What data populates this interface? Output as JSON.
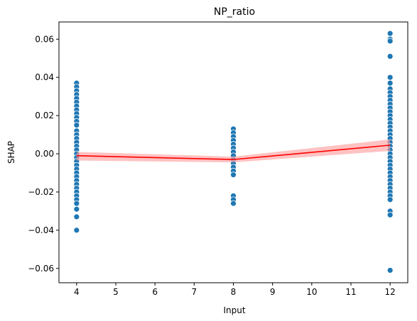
{
  "chart_data": {
    "type": "scatter",
    "title": "NP_ratio",
    "xlabel": "Input",
    "ylabel": "SHAP",
    "xlim": [
      3.55,
      12.45
    ],
    "ylim": [
      -0.0675,
      0.069
    ],
    "xticks": [
      4,
      5,
      6,
      7,
      8,
      9,
      10,
      11,
      12
    ],
    "yticks": [
      -0.06,
      -0.04,
      -0.02,
      0.0,
      0.02,
      0.04,
      0.06
    ],
    "ytick_labels": [
      "−0.06",
      "−0.04",
      "−0.02",
      "0.00",
      "0.02",
      "0.04",
      "0.06"
    ],
    "grid": false,
    "colors": {
      "points": "#1f77b4",
      "line": "#ff0000",
      "band": "#ff9999"
    },
    "scatter": [
      {
        "x": 4,
        "y": [
          0.037,
          0.035,
          0.033,
          0.031,
          0.029,
          0.027,
          0.025,
          0.023,
          0.021,
          0.019,
          0.017,
          0.015,
          0.012,
          0.01,
          0.008,
          0.006,
          0.004,
          0.002,
          0.0,
          -0.002,
          -0.004,
          -0.006,
          -0.008,
          -0.01,
          -0.012,
          -0.014,
          -0.016,
          -0.018,
          -0.02,
          -0.022,
          -0.024,
          -0.026,
          -0.029,
          -0.033,
          -0.04
        ]
      },
      {
        "x": 8,
        "y": [
          0.013,
          0.011,
          0.009,
          0.007,
          0.005,
          0.003,
          0.001,
          -0.001,
          -0.003,
          -0.005,
          -0.007,
          -0.009,
          -0.011,
          -0.022,
          -0.024,
          -0.026
        ]
      },
      {
        "x": 12,
        "y": [
          0.063,
          0.06,
          0.059,
          0.051,
          0.04,
          0.037,
          0.034,
          0.032,
          0.03,
          0.028,
          0.026,
          0.024,
          0.022,
          0.02,
          0.018,
          0.016,
          0.014,
          0.012,
          0.01,
          0.008,
          0.006,
          0.004,
          0.002,
          0.0,
          -0.002,
          -0.004,
          -0.006,
          -0.008,
          -0.01,
          -0.012,
          -0.014,
          -0.016,
          -0.018,
          -0.02,
          -0.022,
          -0.024,
          -0.03,
          -0.032,
          -0.061
        ]
      }
    ],
    "trend": {
      "x": [
        4,
        8,
        12
      ],
      "y": [
        -0.001,
        -0.003,
        0.0045
      ],
      "ci_low": [
        -0.0035,
        -0.0045,
        0.0015
      ],
      "ci_high": [
        0.001,
        -0.0015,
        0.0075
      ]
    }
  }
}
